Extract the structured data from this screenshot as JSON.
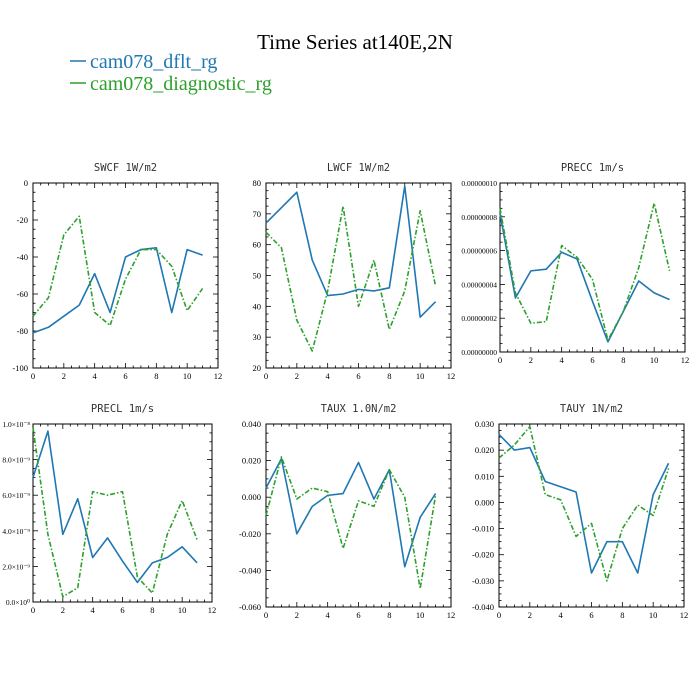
{
  "figure": {
    "title": "Time Series at140E,2N",
    "legend": [
      {
        "label": "cam078_dflt_rg",
        "color": "#1f77b4"
      },
      {
        "label": "cam078_diagnostic_rg",
        "color": "#2ca02c"
      }
    ]
  },
  "chart_data": [
    {
      "type": "line",
      "title": "SWCF   1W/m2",
      "xlim": [
        0,
        12
      ],
      "ylim": [
        -100,
        0
      ],
      "xticks": [
        0,
        2,
        4,
        6,
        8,
        10,
        12
      ],
      "yticks": [
        0,
        -20,
        -40,
        -60,
        -80,
        -100
      ],
      "ytick_labels": [
        "0",
        "-20",
        "-40",
        "-60",
        "-80",
        "-100"
      ],
      "x": [
        0,
        1,
        2,
        3,
        4,
        5,
        6,
        7,
        8,
        9,
        10,
        11
      ],
      "series": [
        {
          "name": "cam078_dflt_rg",
          "color": "#1f77b4",
          "style": "solid",
          "values": [
            -81,
            -78,
            -72,
            -66,
            -49,
            -70,
            -40,
            -36,
            -35,
            -70,
            -36,
            -39
          ]
        },
        {
          "name": "cam078_diagnostic_rg",
          "color": "#2ca02c",
          "style": "dashed",
          "values": [
            -72,
            -62,
            -28,
            -18,
            -70,
            -77,
            -52,
            -36,
            -36,
            -45,
            -69,
            -57
          ]
        }
      ]
    },
    {
      "type": "line",
      "title": "LWCF   1W/m2",
      "xlim": [
        0,
        12
      ],
      "ylim": [
        20,
        80
      ],
      "xticks": [
        0,
        2,
        4,
        6,
        8,
        10,
        12
      ],
      "yticks": [
        80,
        70,
        60,
        50,
        40,
        30,
        20
      ],
      "ytick_labels": [
        "80",
        "70",
        "60",
        "50",
        "40",
        "30",
        "20"
      ],
      "x": [
        0,
        1,
        2,
        3,
        4,
        5,
        6,
        7,
        8,
        9,
        10,
        11
      ],
      "series": [
        {
          "name": "cam078_dflt_rg",
          "color": "#1f77b4",
          "style": "solid",
          "values": [
            67,
            72,
            77,
            55,
            43.5,
            44,
            45.5,
            45,
            46,
            79,
            36.5,
            41.5
          ]
        },
        {
          "name": "cam078_diagnostic_rg",
          "color": "#2ca02c",
          "style": "dashed",
          "values": [
            64,
            59,
            35.5,
            25.5,
            45,
            72.5,
            40,
            55,
            32.5,
            45,
            71,
            46.5
          ]
        }
      ]
    },
    {
      "type": "line",
      "title": "PRECC   1m/s",
      "xlim": [
        0,
        12
      ],
      "ylim": [
        0,
        1e-07
      ],
      "xticks": [
        0,
        2,
        4,
        6,
        8,
        10,
        12
      ],
      "yticks": [
        0,
        2e-08,
        4e-08,
        6e-08,
        8e-08,
        1e-07
      ],
      "ytick_labels": [
        "0.00000000",
        "0.00000002",
        "0.00000004",
        "0.00000006",
        "0.00000008",
        "0.00000010"
      ],
      "x": [
        0,
        1,
        2,
        3,
        4,
        5,
        6,
        7,
        8,
        9,
        10,
        11
      ],
      "series": [
        {
          "name": "cam078_dflt_rg",
          "color": "#1f77b4",
          "style": "solid",
          "values": [
            8.2e-08,
            3.2e-08,
            4.8e-08,
            4.9e-08,
            5.9e-08,
            5.5e-08,
            3e-08,
            6e-09,
            2.4e-08,
            4.2e-08,
            3.5e-08,
            3.1e-08
          ]
        },
        {
          "name": "cam078_diagnostic_rg",
          "color": "#2ca02c",
          "style": "dashed",
          "values": [
            8.5e-08,
            3.5e-08,
            1.7e-08,
            1.8e-08,
            6.3e-08,
            5.6e-08,
            4.3e-08,
            7e-09,
            2.4e-08,
            5e-08,
            8.8e-08,
            4.8e-08
          ]
        }
      ]
    },
    {
      "type": "line",
      "title": "PRECL   1m/s",
      "xlim": [
        0,
        12
      ],
      "ylim": [
        0,
        1e-08
      ],
      "xticks": [
        0,
        2,
        4,
        6,
        8,
        10,
        12
      ],
      "yticks": [
        0,
        2e-09,
        4e-09,
        6e-09,
        8e-09,
        1e-08
      ],
      "ytick_labels": [
        "0.0×10⁰",
        "2.0×10⁻⁹",
        "4.0×10⁻⁹",
        "6.0×10⁻⁹",
        "8.0×10⁻⁹",
        "1.0×10⁻⁸"
      ],
      "x": [
        0,
        1,
        2,
        3,
        4,
        5,
        6,
        7,
        8,
        9,
        10,
        11
      ],
      "series": [
        {
          "name": "cam078_dflt_rg",
          "color": "#1f77b4",
          "style": "solid",
          "values": [
            7e-09,
            9.6e-09,
            3.8e-09,
            5.8e-09,
            2.5e-09,
            3.6e-09,
            2.3e-09,
            1.1e-09,
            2.2e-09,
            2.5e-09,
            3.1e-09,
            2.2e-09
          ]
        },
        {
          "name": "cam078_diagnostic_rg",
          "color": "#2ca02c",
          "style": "dashed",
          "values": [
            9.8e-09,
            3.8e-09,
            3e-10,
            8e-10,
            6.2e-09,
            6e-09,
            6.2e-09,
            1.4e-09,
            5e-10,
            3.8e-09,
            5.7e-09,
            3.5e-09
          ]
        }
      ]
    },
    {
      "type": "line",
      "title": "TAUX   1.0N/m2",
      "xlim": [
        0,
        12
      ],
      "ylim": [
        -0.06,
        0.04
      ],
      "xticks": [
        0,
        2,
        4,
        6,
        8,
        10,
        12
      ],
      "yticks": [
        0.04,
        0.02,
        0,
        -0.02,
        -0.04,
        -0.06
      ],
      "ytick_labels": [
        "0.040",
        "0.020",
        "0.000",
        "-0.020",
        "-0.040",
        "-0.060"
      ],
      "x": [
        0,
        1,
        2,
        3,
        4,
        5,
        6,
        7,
        8,
        9,
        10,
        11
      ],
      "series": [
        {
          "name": "cam078_dflt_rg",
          "color": "#1f77b4",
          "style": "solid",
          "values": [
            0.005,
            0.021,
            -0.02,
            -0.005,
            0.001,
            0.002,
            0.019,
            -0.001,
            0.015,
            -0.038,
            -0.011,
            0.002
          ]
        },
        {
          "name": "cam078_diagnostic_rg",
          "color": "#2ca02c",
          "style": "dashed",
          "values": [
            -0.01,
            0.022,
            -0.001,
            0.005,
            0.003,
            -0.028,
            -0.002,
            -0.005,
            0.015,
            0.0,
            -0.05,
            0.001
          ]
        }
      ]
    },
    {
      "type": "line",
      "title": "TAUY   1N/m2",
      "xlim": [
        0,
        12
      ],
      "ylim": [
        -0.04,
        0.03
      ],
      "xticks": [
        0,
        2,
        4,
        6,
        8,
        10,
        12
      ],
      "yticks": [
        0.03,
        0.02,
        0.01,
        0,
        -0.01,
        -0.02,
        -0.03,
        -0.04
      ],
      "ytick_labels": [
        "0.030",
        "0.020",
        "0.010",
        "0.000",
        "-0.010",
        "-0.020",
        "-0.030",
        "-0.040"
      ],
      "x": [
        0,
        1,
        2,
        3,
        4,
        5,
        6,
        7,
        8,
        9,
        10,
        11
      ],
      "series": [
        {
          "name": "cam078_dflt_rg",
          "color": "#1f77b4",
          "style": "solid",
          "values": [
            0.026,
            0.02,
            0.021,
            0.008,
            0.006,
            0.004,
            -0.027,
            -0.015,
            -0.015,
            -0.027,
            0.003,
            0.015
          ]
        },
        {
          "name": "cam078_diagnostic_rg",
          "color": "#2ca02c",
          "style": "dashed",
          "values": [
            0.017,
            0.022,
            0.029,
            0.003,
            0.001,
            -0.013,
            -0.008,
            -0.03,
            -0.01,
            -0.001,
            -0.005,
            0.013
          ]
        }
      ]
    }
  ]
}
